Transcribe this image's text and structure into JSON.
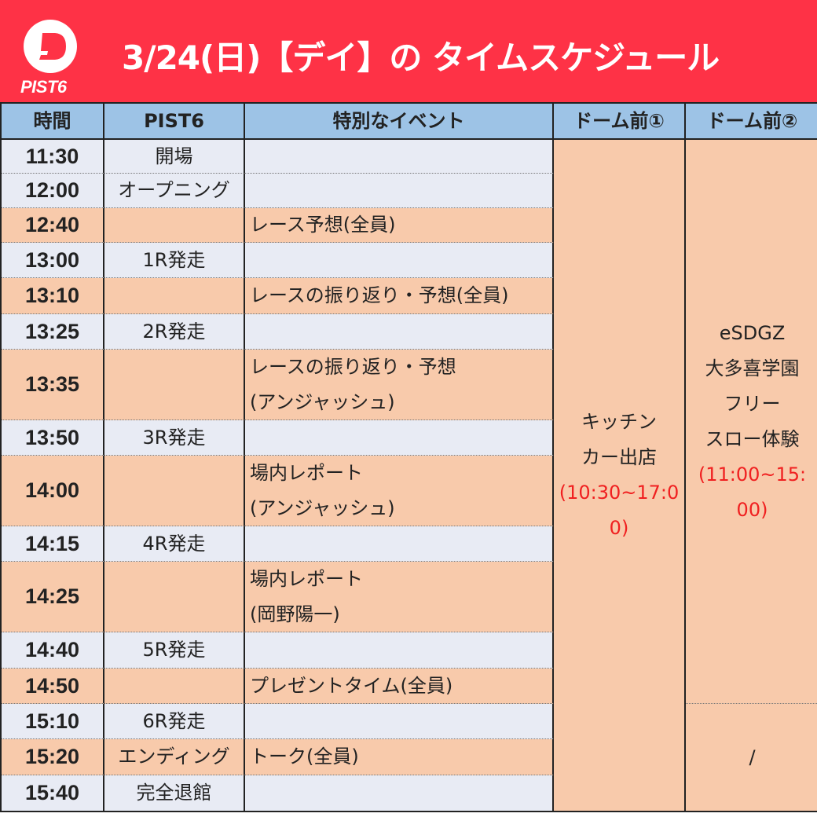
{
  "header": {
    "logo_text": "PIST6",
    "title": "3/24(日)【デイ】の タイムスケジュール",
    "bg_color": "#fe3246"
  },
  "columns": [
    "時間",
    "PIST6",
    "特別なイベント",
    "ドーム前①",
    "ドーム前②"
  ],
  "rows": [
    {
      "time": "11:30",
      "pist6": "開場",
      "event": [],
      "color": "blue"
    },
    {
      "time": "12:00",
      "pist6": "オープニング",
      "event": [],
      "color": "blue"
    },
    {
      "time": "12:40",
      "pist6": "",
      "event": [
        "レース予想(全員)"
      ],
      "color": "orange"
    },
    {
      "time": "13:00",
      "pist6": "1R発走",
      "event": [],
      "color": "blue"
    },
    {
      "time": "13:10",
      "pist6": "",
      "event": [
        "レースの振り返り・予想(全員)"
      ],
      "color": "orange"
    },
    {
      "time": "13:25",
      "pist6": "2R発走",
      "event": [],
      "color": "blue"
    },
    {
      "time": "13:35",
      "pist6": "",
      "event": [
        "レースの振り返り・予想",
        "(アンジャッシュ)"
      ],
      "color": "orange"
    },
    {
      "time": "13:50",
      "pist6": "3R発走",
      "event": [],
      "color": "blue"
    },
    {
      "time": "14:00",
      "pist6": "",
      "event": [
        "場内レポート",
        "(アンジャッシュ)"
      ],
      "color": "orange"
    },
    {
      "time": "14:15",
      "pist6": "4R発走",
      "event": [],
      "color": "blue"
    },
    {
      "time": "14:25",
      "pist6": "",
      "event": [
        "場内レポート",
        "(岡野陽一)"
      ],
      "color": "orange"
    },
    {
      "time": "14:40",
      "pist6": "5R発走",
      "event": [],
      "color": "blue"
    },
    {
      "time": "14:50",
      "pist6": "",
      "event": [
        "プレゼントタイム(全員)"
      ],
      "color": "orange"
    },
    {
      "time": "15:10",
      "pist6": "6R発走",
      "event": [],
      "color": "blue"
    },
    {
      "time": "15:20",
      "pist6": "エンディング",
      "event": [
        "トーク(全員)"
      ],
      "color": "orange"
    },
    {
      "time": "15:40",
      "pist6": "完全退館",
      "event": [],
      "color": "blue"
    }
  ],
  "dome1": {
    "lines": [
      "キッチン",
      "カー出店"
    ],
    "hours": [
      "(10:30~17:0",
      "0)"
    ]
  },
  "dome2": {
    "lines": [
      "eSDGZ",
      "大多喜学園",
      "フリー",
      "スロー体験"
    ],
    "hours": [
      "(11:00~15:",
      "00)"
    ],
    "after": "/"
  },
  "colors": {
    "blue_row": "#e8ebf4",
    "orange_row": "#f8caab",
    "header_row": "#9dc3e6",
    "hours_text": "#f02020"
  }
}
